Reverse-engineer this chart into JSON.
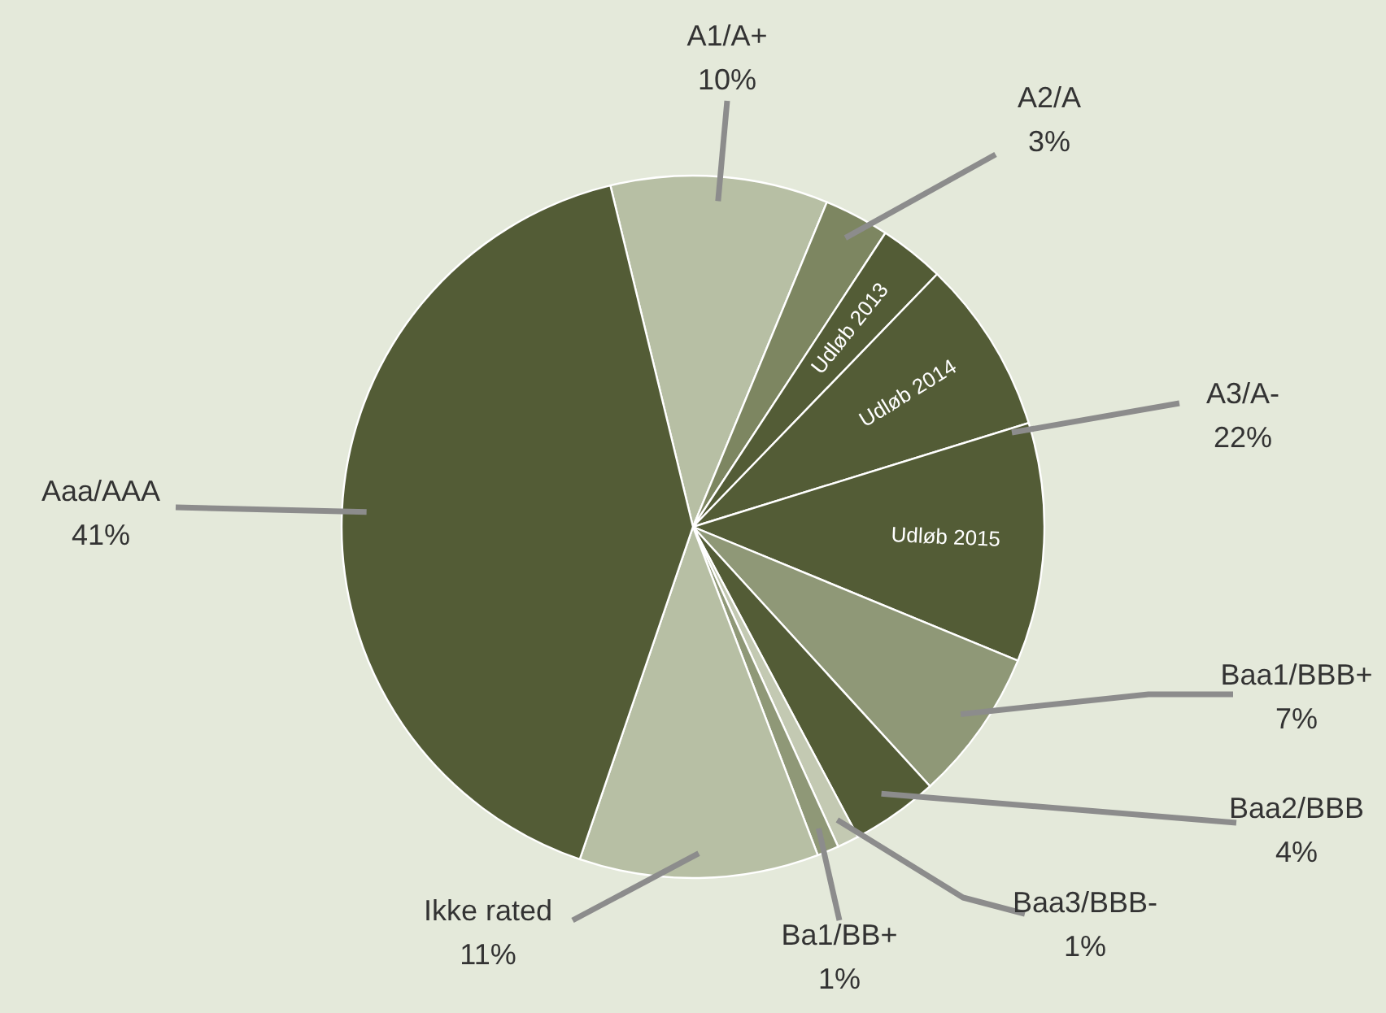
{
  "chart_data": {
    "type": "pie",
    "categories": [
      "A1/A+",
      "A2/A",
      "Udløb 2013",
      "Udløb 2014",
      "Udløb 2015",
      "Baa1/BBB+",
      "Baa2/BBB",
      "Baa3/BBB-",
      "Ba1/BB+",
      "Ikke rated",
      "Aaa/AAA"
    ],
    "values": [
      10,
      3,
      3,
      8,
      11,
      7,
      4,
      1,
      1,
      11,
      41
    ],
    "colors": [
      "#b7bfa4",
      "#7d8661",
      "#535c36",
      "#535c36",
      "#535c36",
      "#8f9877",
      "#535c36",
      "#c3c9b2",
      "#8f9877",
      "#b7bfa4",
      "#535c36"
    ],
    "value_labels": [
      "10%",
      "3%",
      null,
      null,
      null,
      "7%",
      "4%",
      "1%",
      "1%",
      "11%",
      "41%"
    ],
    "annotations": [
      "A3/A-\n22%"
    ]
  }
}
